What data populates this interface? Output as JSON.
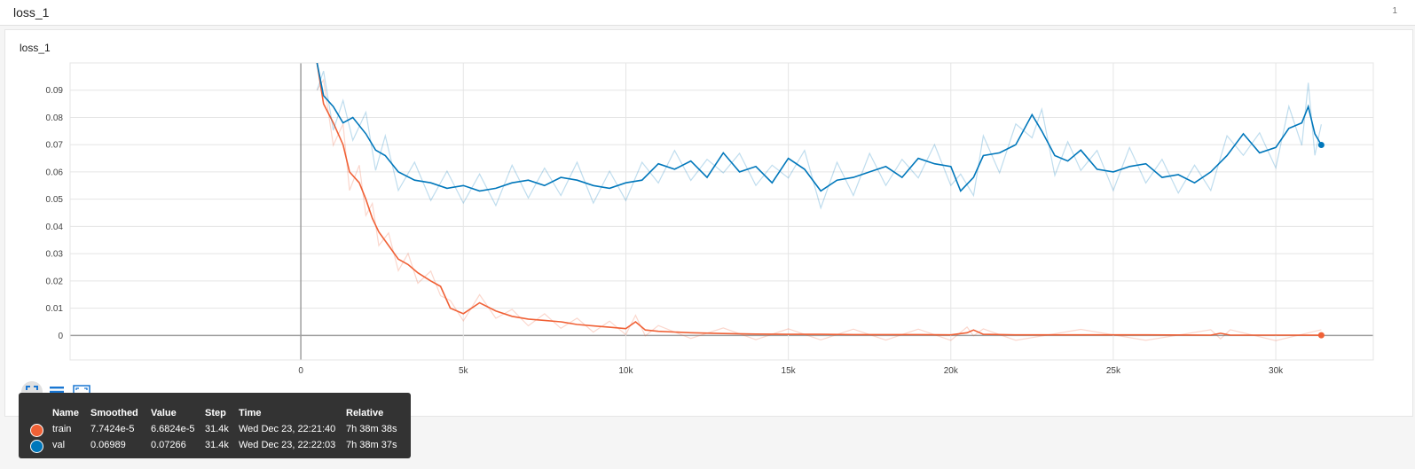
{
  "header": {
    "title": "loss_1",
    "count": "1"
  },
  "card": {
    "title": "loss_1"
  },
  "toolbar": [
    {
      "name": "fit-domain-icon"
    },
    {
      "name": "toggle-log-icon"
    },
    {
      "name": "expand-icon"
    }
  ],
  "chart_data": {
    "type": "line",
    "title": "loss_1",
    "xlim": [
      -7100,
      33000
    ],
    "ylim": [
      -0.009,
      0.1
    ],
    "x_ticks": [
      0,
      5000,
      10000,
      15000,
      20000,
      25000,
      30000
    ],
    "x_tick_labels": [
      "0",
      "5k",
      "10k",
      "15k",
      "20k",
      "25k",
      "30k"
    ],
    "y_ticks": [
      0,
      0.01,
      0.02,
      0.03,
      0.04,
      0.05,
      0.06,
      0.07,
      0.08,
      0.09
    ],
    "y_tick_labels": [
      "0",
      "0.01",
      "0.02",
      "0.03",
      "0.04",
      "0.05",
      "0.06",
      "0.07",
      "0.08",
      "0.09"
    ],
    "grid": true,
    "series": [
      {
        "name": "train",
        "color": "#f06136",
        "x": [
          500,
          700,
          1000,
          1300,
          1500,
          1800,
          2000,
          2200,
          2400,
          2700,
          3000,
          3300,
          3600,
          4000,
          4300,
          4600,
          5000,
          5500,
          6000,
          6500,
          7000,
          7500,
          8000,
          8500,
          9000,
          9500,
          10000,
          10300,
          10600,
          11000,
          12000,
          13000,
          14000,
          15000,
          16000,
          17000,
          18000,
          19000,
          20000,
          20500,
          20700,
          21000,
          22000,
          24000,
          26000,
          28000,
          28300,
          28600,
          30000,
          31400
        ],
        "y": [
          0.1,
          0.085,
          0.078,
          0.07,
          0.06,
          0.056,
          0.05,
          0.043,
          0.038,
          0.033,
          0.028,
          0.026,
          0.023,
          0.02,
          0.018,
          0.01,
          0.008,
          0.012,
          0.009,
          0.007,
          0.006,
          0.0055,
          0.005,
          0.004,
          0.0035,
          0.003,
          0.0025,
          0.005,
          0.002,
          0.0015,
          0.001,
          0.0007,
          0.0005,
          0.0004,
          0.0004,
          0.0003,
          0.0003,
          0.0003,
          0.0002,
          0.001,
          0.002,
          0.0004,
          0.0002,
          0.0002,
          0.0002,
          0.0001,
          0.0008,
          0.0001,
          0.0001,
          7.74e-05
        ]
      },
      {
        "name": "val",
        "color": "#0077bb",
        "x": [
          500,
          700,
          1000,
          1300,
          1600,
          2000,
          2300,
          2600,
          3000,
          3500,
          4000,
          4500,
          5000,
          5500,
          6000,
          6500,
          7000,
          7500,
          8000,
          8500,
          9000,
          9500,
          10000,
          10500,
          11000,
          11500,
          12000,
          12500,
          13000,
          13500,
          14000,
          14500,
          15000,
          15500,
          16000,
          16500,
          17000,
          17500,
          18000,
          18500,
          19000,
          19500,
          20000,
          20300,
          20700,
          21000,
          21500,
          22000,
          22500,
          22800,
          23200,
          23600,
          24000,
          24500,
          25000,
          25500,
          26000,
          26500,
          27000,
          27500,
          28000,
          28500,
          29000,
          29500,
          30000,
          30400,
          30800,
          31000,
          31200,
          31400
        ],
        "y": [
          0.1,
          0.088,
          0.084,
          0.078,
          0.08,
          0.074,
          0.068,
          0.066,
          0.06,
          0.057,
          0.056,
          0.054,
          0.055,
          0.053,
          0.054,
          0.056,
          0.057,
          0.055,
          0.058,
          0.057,
          0.055,
          0.054,
          0.056,
          0.057,
          0.063,
          0.061,
          0.064,
          0.058,
          0.067,
          0.06,
          0.062,
          0.056,
          0.065,
          0.061,
          0.053,
          0.057,
          0.058,
          0.06,
          0.062,
          0.058,
          0.065,
          0.063,
          0.062,
          0.053,
          0.058,
          0.066,
          0.067,
          0.07,
          0.081,
          0.075,
          0.066,
          0.064,
          0.068,
          0.061,
          0.06,
          0.062,
          0.063,
          0.058,
          0.059,
          0.056,
          0.06,
          0.066,
          0.074,
          0.067,
          0.069,
          0.076,
          0.078,
          0.084,
          0.074,
          0.0699
        ]
      }
    ]
  },
  "tooltip": {
    "headers": [
      "Name",
      "Smoothed",
      "Value",
      "Step",
      "Time",
      "Relative"
    ],
    "rows": [
      {
        "color": "#f06136",
        "name": "train",
        "smoothed": "7.7424e-5",
        "value": "6.6824e-5",
        "step": "31.4k",
        "time": "Wed Dec 23, 22:21:40",
        "relative": "7h 38m 38s"
      },
      {
        "color": "#0077bb",
        "name": "val",
        "smoothed": "0.06989",
        "value": "0.07266",
        "step": "31.4k",
        "time": "Wed Dec 23, 22:22:03",
        "relative": "7h 38m 37s"
      }
    ]
  }
}
